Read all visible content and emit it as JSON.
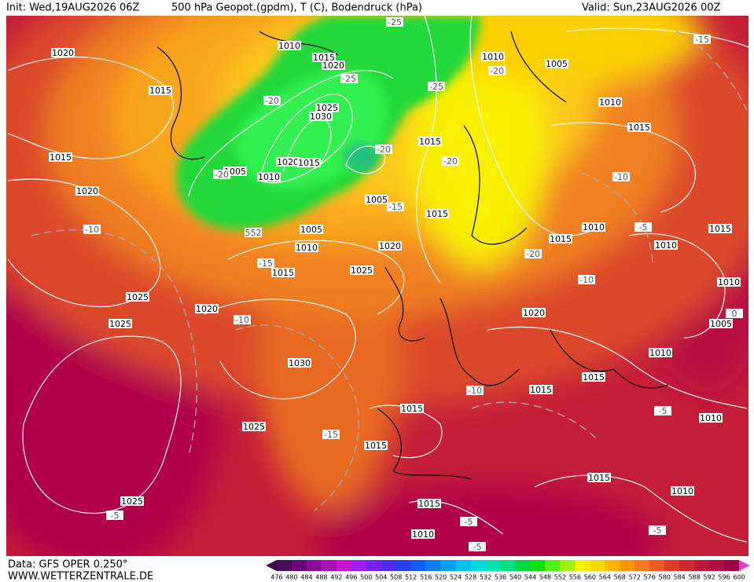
{
  "header": {
    "init": "Init: Wed,19AUG2026 06Z",
    "title": "500 hPa Geopot.(gpdm), T (C), Bodendruck (hPa)",
    "valid": "Valid: Sun,23AUG2026 00Z"
  },
  "footer": {
    "data": "Data: GFS OPER 0.250°",
    "site": "WWW.WETTERZENTRALE.DE"
  },
  "scale": {
    "labels": [
      "476",
      "480",
      "484",
      "488",
      "492",
      "496",
      "500",
      "504",
      "508",
      "512",
      "516",
      "520",
      "524",
      "528",
      "532",
      "536",
      "540",
      "544",
      "548",
      "552",
      "556",
      "560",
      "564",
      "568",
      "572",
      "576",
      "580",
      "584",
      "588",
      "592",
      "596",
      "600"
    ],
    "colors": [
      "#4b0a5a",
      "#6a0a7a",
      "#8c0a9a",
      "#aa10b4",
      "#c814d2",
      "#a020f0",
      "#7820f0",
      "#5028f0",
      "#2840f0",
      "#1060f0",
      "#0a80f0",
      "#00a0f0",
      "#00c0f0",
      "#00d8e0",
      "#00e0b0",
      "#00e080",
      "#00d840",
      "#10e010",
      "#50f010",
      "#a0f010",
      "#f0f000",
      "#ffd800",
      "#ffb400",
      "#ff9600",
      "#f87820",
      "#f05a20",
      "#e03c28",
      "#d02830",
      "#c01838",
      "#b00c40",
      "#a00048"
    ]
  },
  "isobar_labels": [
    "1020",
    "1015",
    "1015",
    "1020",
    "1010",
    "1015",
    "1020",
    "1025",
    "1030",
    "1005",
    "1010",
    "1020",
    "1015",
    "1005",
    "1005",
    "1010",
    "1015",
    "1020",
    "1025",
    "1025",
    "1020",
    "1025",
    "1030",
    "1015",
    "1015",
    "1010",
    "1005",
    "1010",
    "1015",
    "1015",
    "1010",
    "1010",
    "1015",
    "1010",
    "1005",
    "1020",
    "1010",
    "1015",
    "1015",
    "1015",
    "1025",
    "1015",
    "1010",
    "1015",
    "1010",
    "1015",
    "1010",
    "1025"
  ],
  "temp_labels": [
    "-25",
    "-15",
    "-20",
    "-25",
    "-25",
    "-20",
    "-20",
    "-20",
    "-20",
    "-15",
    "-10",
    "552",
    "-15",
    "-20",
    "-10",
    "-5",
    "-10",
    "-10",
    "0",
    "-10",
    "-15",
    "-5",
    "-5",
    "-5",
    "-5",
    "-5"
  ]
}
